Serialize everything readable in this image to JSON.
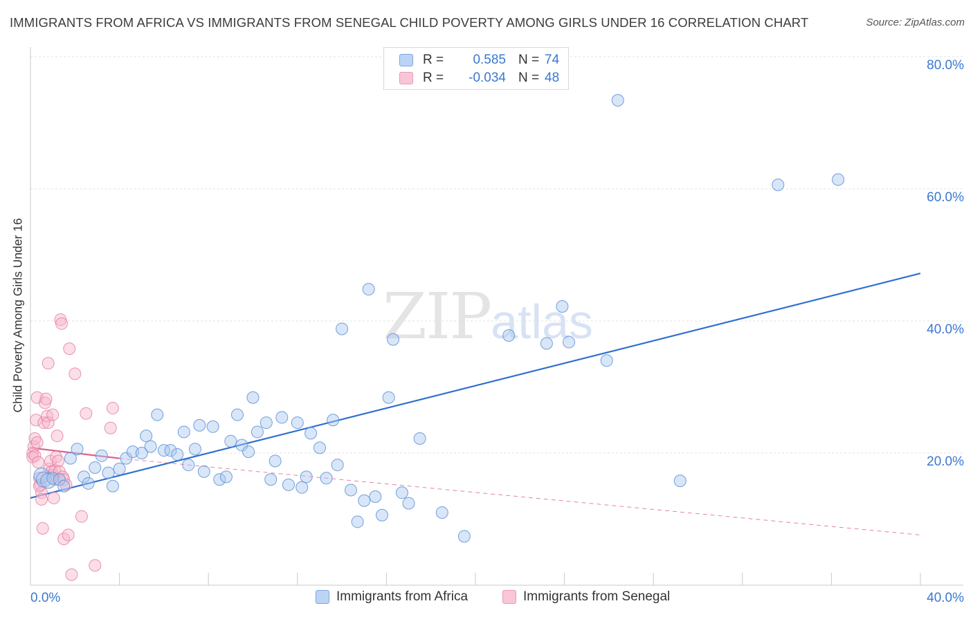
{
  "title": "IMMIGRANTS FROM AFRICA VS IMMIGRANTS FROM SENEGAL CHILD POVERTY AMONG GIRLS UNDER 16 CORRELATION CHART",
  "source": "Source: ZipAtlas.com",
  "watermark": {
    "zip": "ZIP",
    "atlas": "atlas"
  },
  "legend": {
    "r_label": "R =",
    "n_label": "N =",
    "rows": [
      {
        "r": "0.585",
        "n": "74"
      },
      {
        "r": "-0.034",
        "n": "48"
      }
    ]
  },
  "colors": {
    "africa_fill": "#a9c8f0",
    "africa_stroke": "#5a8fd6",
    "africa_line": "#2f6fd0",
    "senegal_fill": "#f6b6cb",
    "senegal_stroke": "#e27a9c",
    "senegal_line": "#e0628e",
    "tick_text": "#3a78d0",
    "grid": "#e2e2e2"
  },
  "chart_data": {
    "type": "scatter",
    "title": "IMMIGRANTS FROM AFRICA VS IMMIGRANTS FROM SENEGAL CHILD POVERTY AMONG GIRLS UNDER 16 CORRELATION CHART",
    "xlabel": "",
    "ylabel": "Child Poverty Among Girls Under 16",
    "xlim": [
      0,
      40
    ],
    "ylim": [
      0,
      80
    ],
    "x_ticks": [
      "0.0%",
      "40.0%"
    ],
    "y_ticks": [
      {
        "value": 20,
        "label": "20.0%"
      },
      {
        "value": 40,
        "label": "40.0%"
      },
      {
        "value": 60,
        "label": "60.0%"
      },
      {
        "value": 80,
        "label": "80.0%"
      }
    ],
    "grid": true,
    "legend_position": "bottom",
    "series": [
      {
        "name": "Immigrants from Africa",
        "r": 0.585,
        "n": 74,
        "trend": {
          "x": [
            0.0,
            40.0
          ],
          "y": [
            13.2,
            47.2
          ],
          "style": "solid"
        },
        "points": [
          [
            0.5,
            16.6
          ],
          [
            0.6,
            16.0
          ],
          [
            0.8,
            15.8
          ],
          [
            1.0,
            16.2
          ],
          [
            1.3,
            16.0
          ],
          [
            1.5,
            15.0
          ],
          [
            1.8,
            19.2
          ],
          [
            2.1,
            20.6
          ],
          [
            2.4,
            16.4
          ],
          [
            2.6,
            15.4
          ],
          [
            2.9,
            17.8
          ],
          [
            3.2,
            19.6
          ],
          [
            3.5,
            17.0
          ],
          [
            3.7,
            15.0
          ],
          [
            4.0,
            17.6
          ],
          [
            4.3,
            19.2
          ],
          [
            4.6,
            20.2
          ],
          [
            5.0,
            20.0
          ],
          [
            5.2,
            22.6
          ],
          [
            5.4,
            21.0
          ],
          [
            5.7,
            25.8
          ],
          [
            6.0,
            20.4
          ],
          [
            6.3,
            20.4
          ],
          [
            6.6,
            19.8
          ],
          [
            6.9,
            23.2
          ],
          [
            7.1,
            18.2
          ],
          [
            7.4,
            20.6
          ],
          [
            7.6,
            24.2
          ],
          [
            7.8,
            17.2
          ],
          [
            8.2,
            24.0
          ],
          [
            8.5,
            16.0
          ],
          [
            8.8,
            16.4
          ],
          [
            9.0,
            21.8
          ],
          [
            9.3,
            25.8
          ],
          [
            9.5,
            21.2
          ],
          [
            9.8,
            20.2
          ],
          [
            10.0,
            28.4
          ],
          [
            10.2,
            23.2
          ],
          [
            10.6,
            24.6
          ],
          [
            10.8,
            16.0
          ],
          [
            11.0,
            18.8
          ],
          [
            11.3,
            25.4
          ],
          [
            11.6,
            15.2
          ],
          [
            12.0,
            24.6
          ],
          [
            12.2,
            14.8
          ],
          [
            12.4,
            16.4
          ],
          [
            12.6,
            23.0
          ],
          [
            13.0,
            20.8
          ],
          [
            13.3,
            16.2
          ],
          [
            13.6,
            25.0
          ],
          [
            13.8,
            18.2
          ],
          [
            14.0,
            38.8
          ],
          [
            14.4,
            14.4
          ],
          [
            14.7,
            9.6
          ],
          [
            15.0,
            12.8
          ],
          [
            15.2,
            44.8
          ],
          [
            15.5,
            13.4
          ],
          [
            15.8,
            10.6
          ],
          [
            16.1,
            28.4
          ],
          [
            16.3,
            37.2
          ],
          [
            16.7,
            14.0
          ],
          [
            17.0,
            12.4
          ],
          [
            17.5,
            22.2
          ],
          [
            18.5,
            11.0
          ],
          [
            19.5,
            7.4
          ],
          [
            21.5,
            37.8
          ],
          [
            23.2,
            36.6
          ],
          [
            23.9,
            42.2
          ],
          [
            24.2,
            36.8
          ],
          [
            25.9,
            34.0
          ],
          [
            26.4,
            73.4
          ],
          [
            29.2,
            15.8
          ],
          [
            33.6,
            60.6
          ],
          [
            36.3,
            61.4
          ]
        ]
      },
      {
        "name": "Immigrants from Senegal",
        "r": -0.034,
        "n": 48,
        "trend": {
          "x": [
            0.0,
            4.0
          ],
          "y": [
            20.8,
            19.2
          ],
          "style": "solid",
          "extended": {
            "x": [
              4.0,
              40.0
            ],
            "y": [
              19.2,
              7.6
            ],
            "style": "dashed"
          }
        },
        "points": [
          [
            0.1,
            20.0
          ],
          [
            0.1,
            19.4
          ],
          [
            0.15,
            21.0
          ],
          [
            0.2,
            22.2
          ],
          [
            0.2,
            19.6
          ],
          [
            0.25,
            25.0
          ],
          [
            0.3,
            28.4
          ],
          [
            0.3,
            21.6
          ],
          [
            0.35,
            18.6
          ],
          [
            0.4,
            16.2
          ],
          [
            0.45,
            15.2
          ],
          [
            0.5,
            14.0
          ],
          [
            0.5,
            13.0
          ],
          [
            0.55,
            8.6
          ],
          [
            0.6,
            24.6
          ],
          [
            0.65,
            27.6
          ],
          [
            0.7,
            28.2
          ],
          [
            0.75,
            25.6
          ],
          [
            0.8,
            24.6
          ],
          [
            0.8,
            33.6
          ],
          [
            0.85,
            17.6
          ],
          [
            0.9,
            18.8
          ],
          [
            0.95,
            17.2
          ],
          [
            1.0,
            25.8
          ],
          [
            1.0,
            16.6
          ],
          [
            1.05,
            13.2
          ],
          [
            1.1,
            17.4
          ],
          [
            1.1,
            16.0
          ],
          [
            1.15,
            19.4
          ],
          [
            1.2,
            22.6
          ],
          [
            1.25,
            18.8
          ],
          [
            1.3,
            17.2
          ],
          [
            1.35,
            40.2
          ],
          [
            1.4,
            39.6
          ],
          [
            1.45,
            16.4
          ],
          [
            1.5,
            16.0
          ],
          [
            1.5,
            7.0
          ],
          [
            1.6,
            15.2
          ],
          [
            1.7,
            7.6
          ],
          [
            1.75,
            35.8
          ],
          [
            1.85,
            1.6
          ],
          [
            2.0,
            32.0
          ],
          [
            2.3,
            10.4
          ],
          [
            2.5,
            26.0
          ],
          [
            2.9,
            3.0
          ],
          [
            3.6,
            23.8
          ],
          [
            3.7,
            26.8
          ],
          [
            0.4,
            15.0
          ]
        ]
      }
    ]
  }
}
